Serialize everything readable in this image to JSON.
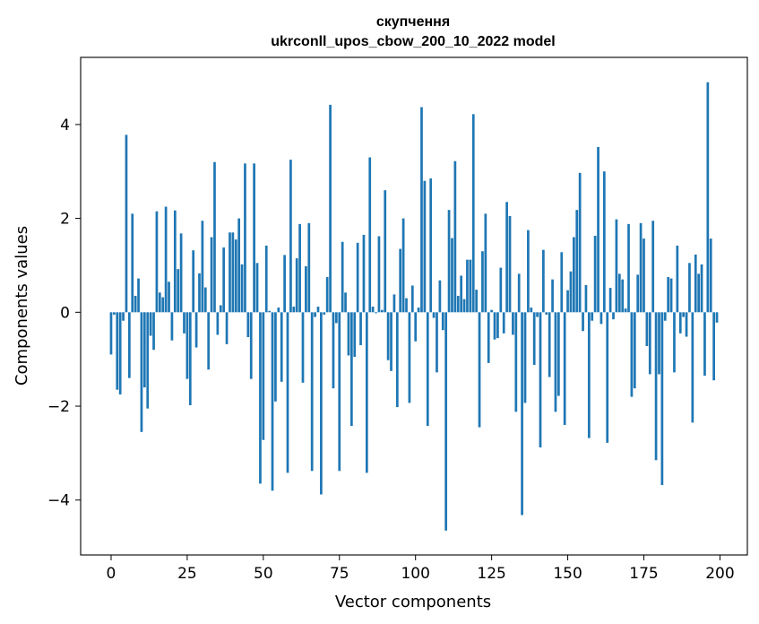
{
  "chart_data": {
    "type": "bar",
    "title": "скупчення",
    "subtitle": "ukrconll_upos_cbow_200_10_2022 model",
    "xlabel": "Vector components",
    "ylabel": "Components values",
    "xlim": [
      -10,
      209
    ],
    "ylim": [
      -5.17,
      5.43
    ],
    "xticks": [
      0,
      25,
      50,
      75,
      100,
      125,
      150,
      175,
      200
    ],
    "xtick_labels": [
      "0",
      "25",
      "50",
      "75",
      "100",
      "125",
      "150",
      "175",
      "200"
    ],
    "yticks": [
      -4,
      -2,
      0,
      2,
      4
    ],
    "ytick_labels": [
      "−4",
      "−2",
      "0",
      "2",
      "4"
    ],
    "bar_color": "#1f77b4",
    "grid": false,
    "legend": "none",
    "x": [
      0,
      1,
      2,
      3,
      4,
      5,
      6,
      7,
      8,
      9,
      10,
      11,
      12,
      13,
      14,
      15,
      16,
      17,
      18,
      19,
      20,
      21,
      22,
      23,
      24,
      25,
      26,
      27,
      28,
      29,
      30,
      31,
      32,
      33,
      34,
      35,
      36,
      37,
      38,
      39,
      40,
      41,
      42,
      43,
      44,
      45,
      46,
      47,
      48,
      49,
      50,
      51,
      52,
      53,
      54,
      55,
      56,
      57,
      58,
      59,
      60,
      61,
      62,
      63,
      64,
      65,
      66,
      67,
      68,
      69,
      70,
      71,
      72,
      73,
      74,
      75,
      76,
      77,
      78,
      79,
      80,
      81,
      82,
      83,
      84,
      85,
      86,
      87,
      88,
      89,
      90,
      91,
      92,
      93,
      94,
      95,
      96,
      97,
      98,
      99,
      100,
      101,
      102,
      103,
      104,
      105,
      106,
      107,
      108,
      109,
      110,
      111,
      112,
      113,
      114,
      115,
      116,
      117,
      118,
      119,
      120,
      121,
      122,
      123,
      124,
      125,
      126,
      127,
      128,
      129,
      130,
      131,
      132,
      133,
      134,
      135,
      136,
      137,
      138,
      139,
      140,
      141,
      142,
      143,
      144,
      145,
      146,
      147,
      148,
      149,
      150,
      151,
      152,
      153,
      154,
      155,
      156,
      157,
      158,
      159,
      160,
      161,
      162,
      163,
      164,
      165,
      166,
      167,
      168,
      169,
      170,
      171,
      172,
      173,
      174,
      175,
      176,
      177,
      178,
      179,
      180,
      181,
      182,
      183,
      184,
      185,
      186,
      187,
      188,
      189,
      190,
      191,
      192,
      193,
      194,
      195,
      196,
      197,
      198,
      199
    ],
    "values": [
      -0.9,
      -0.05,
      -1.65,
      -1.75,
      -0.18,
      3.78,
      -1.4,
      2.1,
      0.35,
      0.72,
      -2.55,
      -1.6,
      -2.05,
      -0.5,
      -0.8,
      2.15,
      0.42,
      0.32,
      2.25,
      0.65,
      -0.6,
      2.17,
      0.92,
      1.68,
      -0.45,
      -1.42,
      -1.98,
      1.32,
      -0.75,
      0.83,
      1.95,
      0.53,
      -1.22,
      1.6,
      3.2,
      -0.48,
      0.15,
      1.38,
      -0.68,
      1.7,
      1.7,
      1.55,
      2.0,
      1.02,
      3.17,
      -0.53,
      -1.42,
      3.17,
      1.05,
      -3.65,
      -2.72,
      1.42,
      0.03,
      -3.8,
      -1.9,
      0.1,
      -1.48,
      1.22,
      -3.42,
      3.25,
      0.12,
      1.15,
      1.88,
      -1.5,
      0.98,
      1.9,
      -3.38,
      -0.1,
      0.12,
      -3.88,
      -0.05,
      0.75,
      4.42,
      -1.62,
      -0.23,
      -3.38,
      1.5,
      0.42,
      -0.92,
      -2.42,
      -0.95,
      1.48,
      -0.7,
      1.65,
      -3.42,
      3.3,
      0.12,
      -0.02,
      1.62,
      0.05,
      2.6,
      -1.02,
      -1.25,
      0.38,
      -2.02,
      1.35,
      2.0,
      0.3,
      -1.93,
      0.57,
      -0.62,
      0.1,
      4.37,
      2.8,
      -2.42,
      2.85,
      -0.12,
      -1.28,
      0.68,
      -0.38,
      -4.65,
      2.18,
      1.58,
      3.22,
      0.35,
      0.78,
      0.28,
      1.12,
      1.12,
      4.22,
      0.48,
      -2.45,
      1.3,
      2.1,
      -1.08,
      0.05,
      -0.58,
      -0.55,
      0.95,
      -0.45,
      2.35,
      2.05,
      -0.48,
      -2.12,
      0.82,
      -4.32,
      -1.93,
      1.75,
      0.1,
      -1.12,
      -0.1,
      -2.88,
      1.33,
      -0.05,
      -1.38,
      0.7,
      -2.12,
      -1.78,
      1.28,
      -2.4,
      0.47,
      0.87,
      1.6,
      2.18,
      2.97,
      -0.4,
      0.58,
      -2.68,
      -0.18,
      1.63,
      3.52,
      -0.25,
      3.0,
      -2.78,
      0.52,
      -0.15,
      1.98,
      0.82,
      0.7,
      0.08,
      1.88,
      -1.8,
      -1.62,
      0.8,
      1.9,
      1.57,
      -0.72,
      -1.32,
      1.95,
      -3.15,
      -1.32,
      -3.68,
      -0.18,
      0.75,
      0.72,
      -1.28,
      1.42,
      -0.45,
      -0.1,
      -0.52,
      1.05,
      -2.35,
      1.23,
      0.82,
      1.02,
      -1.35,
      4.9,
      1.57,
      -1.45,
      -0.22
    ]
  }
}
